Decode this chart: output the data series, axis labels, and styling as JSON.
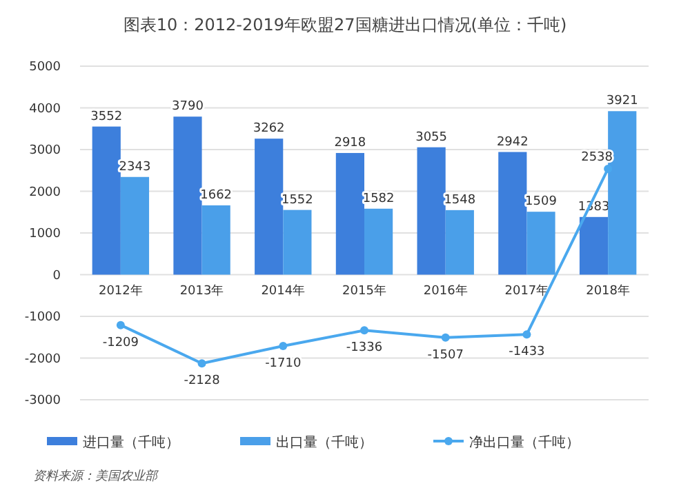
{
  "chart_data": {
    "type": "bar",
    "title": "图表10：2012-2019年欧盟27国糖进出口情况(单位：千吨)",
    "categories": [
      "2012年",
      "2013年",
      "2014年",
      "2015年",
      "2016年",
      "2017年",
      "2018年"
    ],
    "series": [
      {
        "name": "进口量（千吨）",
        "color": "#3d7fdc",
        "values": [
          3552,
          3790,
          3262,
          2918,
          3055,
          2942,
          1383
        ]
      },
      {
        "name": "出口量（千吨）",
        "color": "#4a9fe9",
        "values": [
          2343,
          1662,
          1552,
          1582,
          1548,
          1509,
          3921
        ]
      },
      {
        "name": "净出口量（千吨）",
        "type": "line",
        "color": "#4aa8ee",
        "marker": "circle",
        "values": [
          -1209,
          -2128,
          -1710,
          -1336,
          -1507,
          -1433,
          2538
        ]
      }
    ],
    "ylim": [
      -3000,
      5000
    ],
    "yticks": [
      -3000,
      -2000,
      -1000,
      0,
      1000,
      2000,
      3000,
      4000,
      5000
    ],
    "grid": "y",
    "legend": "bottom",
    "data_labels": true,
    "annotations": [
      "资料来源：美国农业部"
    ]
  }
}
